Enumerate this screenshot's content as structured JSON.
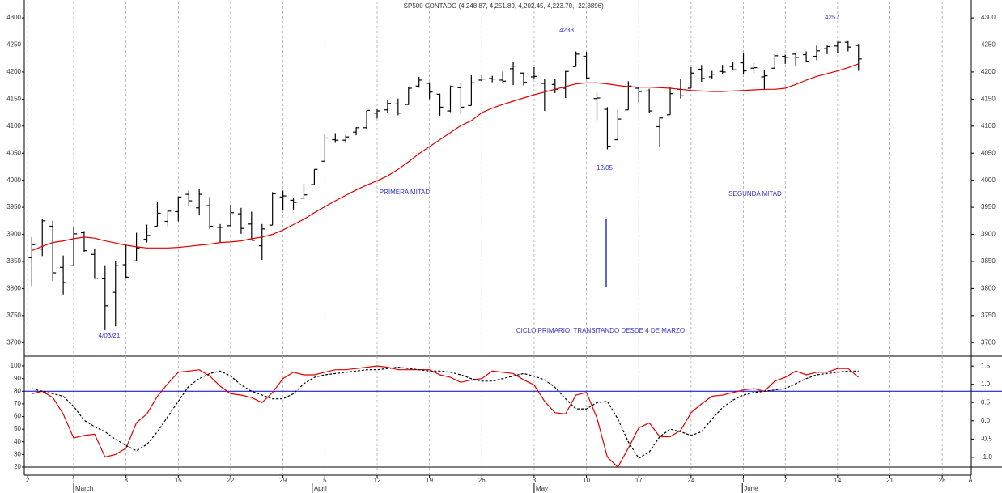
{
  "chart_data": [
    {
      "type": "ohlc",
      "title": "I SP500 CONTADO (4,248.87, 4,251.89, 4,202.45, 4,223.70, -22.8896)",
      "annotations": [
        "4238",
        "4257",
        "12/05",
        "4/03/21",
        "PRIMERA MITAD",
        "SEGUNDA MITAD",
        "CICLO PRIMARIO, TRANSITANDO DESDE 4 DE MARZO"
      ],
      "x": [
        0,
        1,
        2,
        3,
        4,
        5,
        6,
        7,
        8,
        9,
        10,
        11,
        12,
        13,
        14,
        15,
        16,
        17,
        18,
        19,
        20,
        21,
        22,
        23,
        24,
        25,
        26,
        27,
        28,
        29,
        30,
        31,
        32,
        33,
        34,
        35,
        36,
        37,
        38,
        39,
        40,
        41,
        42,
        43,
        44,
        45,
        46,
        47,
        48,
        49,
        50,
        51,
        52,
        53,
        54,
        55,
        56,
        57,
        58,
        59,
        60,
        61,
        62,
        63,
        64,
        65,
        66,
        67,
        68,
        69,
        70,
        71,
        72,
        73,
        74,
        75,
        76,
        77,
        78,
        79
      ],
      "open": [
        3857,
        3873,
        3915,
        3839,
        3842,
        3903,
        3863,
        3818,
        3793,
        3844,
        3851,
        3891,
        3915,
        3924,
        3942,
        3974,
        3949,
        3953,
        3913,
        3916,
        3938,
        3919,
        3879,
        3917,
        3969,
        3963,
        3967,
        3992,
        4035,
        4075,
        4074,
        4089,
        4097,
        4124,
        4130,
        4141,
        4140,
        4174,
        4179,
        4159,
        4128,
        4171,
        4138,
        4185,
        4188,
        4185,
        4206,
        4198,
        4191,
        4179,
        4177,
        4170,
        4210,
        4229,
        4151,
        4131,
        4075,
        4130,
        4170,
        4165,
        4099,
        4121,
        4168,
        4170,
        4205,
        4191,
        4201,
        4210,
        4217,
        4207,
        4191,
        4207,
        4229,
        4233,
        4232,
        4229,
        4243,
        4248,
        4255,
        4249
      ],
      "high": [
        3895,
        3928,
        3925,
        3861,
        3914,
        3906,
        3874,
        3843,
        3851,
        3881,
        3903,
        3918,
        3960,
        3944,
        3970,
        3981,
        3983,
        3969,
        3919,
        3955,
        3949,
        3942,
        3919,
        3978,
        3981,
        3968,
        3994,
        4020,
        4083,
        4087,
        4083,
        4098,
        4129,
        4131,
        4148,
        4151,
        4173,
        4191,
        4181,
        4160,
        4175,
        4179,
        4194,
        4194,
        4193,
        4201,
        4218,
        4199,
        4209,
        4187,
        4187,
        4202,
        4238,
        4237,
        4162,
        4135,
        4131,
        4183,
        4172,
        4169,
        4116,
        4172,
        4188,
        4209,
        4213,
        4202,
        4213,
        4218,
        4235,
        4217,
        4204,
        4233,
        4232,
        4236,
        4238,
        4249,
        4249,
        4256,
        4257,
        4252
      ],
      "low": [
        3805,
        3860,
        3814,
        3789,
        3842,
        3868,
        3818,
        3723,
        3730,
        3819,
        3851,
        3885,
        3915,
        3915,
        3924,
        3953,
        3935,
        3910,
        3885,
        3915,
        3901,
        3889,
        3853,
        3917,
        3944,
        3944,
        3966,
        3992,
        4035,
        4069,
        4069,
        4083,
        4095,
        4114,
        4125,
        4120,
        4139,
        4171,
        4150,
        4119,
        4126,
        4123,
        4138,
        4183,
        4181,
        4181,
        4176,
        4175,
        4188,
        4128,
        4161,
        4152,
        4210,
        4188,
        4111,
        4057,
        4074,
        4130,
        4143,
        4125,
        4062,
        4121,
        4151,
        4170,
        4182,
        4188,
        4197,
        4203,
        4196,
        4198,
        4167,
        4206,
        4215,
        4210,
        4219,
        4222,
        4233,
        4235,
        4238,
        4202
      ],
      "close": [
        3881,
        3925,
        3829,
        3811,
        3901,
        3870,
        3819,
        3768,
        3842,
        3821,
        3875,
        3898,
        3939,
        3943,
        3969,
        3962,
        3974,
        3915,
        3913,
        3940,
        3911,
        3889,
        3910,
        3975,
        3971,
        3959,
        3973,
        4020,
        4078,
        4074,
        4080,
        4097,
        4129,
        4128,
        4142,
        4124,
        4170,
        4185,
        4163,
        4135,
        4173,
        4135,
        4180,
        4187,
        4187,
        4183,
        4211,
        4181,
        4192,
        4165,
        4168,
        4201,
        4233,
        4189,
        4152,
        4063,
        4113,
        4174,
        4164,
        4128,
        4115,
        4160,
        4156,
        4198,
        4188,
        4196,
        4200,
        4204,
        4202,
        4208,
        4193,
        4230,
        4227,
        4227,
        4220,
        4239,
        4247,
        4255,
        4246,
        4224
      ],
      "bar_color": "#000000",
      "series": [
        {
          "color": "#e00000",
          "values": [
            3870,
            3878,
            3885,
            3888,
            3892,
            3895,
            3893,
            3888,
            3884,
            3880,
            3877,
            3875,
            3875,
            3875,
            3876,
            3878,
            3880,
            3882,
            3885,
            3886,
            3888,
            3892,
            3895,
            3900,
            3908,
            3918,
            3928,
            3940,
            3951,
            3962,
            3972,
            3982,
            3991,
            3999,
            4008,
            4020,
            4034,
            4049,
            4062,
            4075,
            4088,
            4101,
            4110,
            4125,
            4133,
            4140,
            4146,
            4152,
            4158,
            4163,
            4168,
            4173,
            4178,
            4180,
            4180,
            4178,
            4175,
            4173,
            4172,
            4172,
            4171,
            4170,
            4168,
            4166,
            4165,
            4164,
            4164,
            4165,
            4166,
            4167,
            4168,
            4168,
            4170,
            4177,
            4185,
            4192,
            4197,
            4202,
            4208,
            4215
          ]
        }
      ],
      "xlim": [
        -0.72,
        89.77
      ],
      "ylim": [
        3675,
        4330
      ],
      "yticks": [
        3700,
        3750,
        3800,
        3850,
        3900,
        3950,
        4000,
        4050,
        4100,
        4150,
        4200,
        4250,
        4300
      ]
    },
    {
      "type": "line",
      "x": [
        0,
        1,
        2,
        3,
        4,
        5,
        6,
        7,
        8,
        9,
        10,
        11,
        12,
        13,
        14,
        15,
        16,
        17,
        18,
        19,
        20,
        21,
        22,
        23,
        24,
        25,
        26,
        27,
        28,
        29,
        30,
        31,
        32,
        33,
        34,
        35,
        36,
        37,
        38,
        39,
        40,
        41,
        42,
        43,
        44,
        45,
        46,
        47,
        48,
        49,
        50,
        51,
        52,
        53,
        54,
        55,
        56,
        57,
        58,
        59,
        60,
        61,
        62,
        63,
        64,
        65,
        66,
        67,
        68,
        69,
        70,
        71,
        72,
        73,
        74,
        75,
        76,
        77,
        78,
        79
      ],
      "series": [
        {
          "color": "#e00000",
          "dashed": false,
          "values": [
            78,
            80,
            75,
            62,
            43,
            45,
            46,
            28,
            30,
            35,
            55,
            62,
            76,
            86,
            95,
            96,
            97,
            92,
            84,
            78,
            77,
            75,
            71,
            79,
            90,
            95,
            93,
            93,
            95,
            97,
            97,
            98,
            99,
            100,
            99,
            97,
            97,
            97,
            97,
            93,
            91,
            87,
            89,
            90,
            96,
            95,
            94,
            89,
            85,
            72,
            63,
            62,
            77,
            79,
            59,
            28,
            20,
            35,
            51,
            55,
            44,
            44,
            49,
            63,
            70,
            76,
            77,
            79,
            81,
            82,
            80,
            88,
            91,
            96,
            93,
            95,
            95,
            98,
            98,
            91
          ]
        },
        {
          "color": "#000000",
          "dashed": true,
          "values": [
            82,
            80,
            78,
            76,
            68,
            57,
            52,
            48,
            42,
            37,
            33,
            38,
            48,
            60,
            72,
            84,
            90,
            94,
            96,
            92,
            85,
            80,
            77,
            74,
            74,
            78,
            86,
            91,
            93,
            94,
            95,
            96,
            97,
            97,
            98,
            99,
            98,
            97,
            96,
            96,
            95,
            93,
            90,
            88,
            88,
            90,
            92,
            94,
            92,
            89,
            83,
            74,
            66,
            66,
            71,
            72,
            58,
            40,
            27,
            32,
            44,
            50,
            48,
            45,
            48,
            58,
            67,
            73,
            77,
            79,
            80,
            81,
            82,
            86,
            90,
            93,
            94,
            95,
            96,
            96
          ]
        }
      ],
      "reference_lines": [
        {
          "value": 80,
          "color": "#0000cc"
        },
        {
          "value": 20,
          "color": "#000000"
        }
      ],
      "xlim": [
        -0.72,
        89.77
      ],
      "ylim": [
        13.6,
        107.7
      ],
      "yticks": [
        20,
        30,
        40,
        50,
        60,
        70,
        80,
        90,
        100
      ],
      "y2lim": [
        -1.49,
        1.77
      ],
      "y2ticks": [
        {
          "value": 1.5,
          "label": "1.5"
        },
        {
          "value": 1,
          "label": "1.0"
        },
        {
          "value": 0.5,
          "label": "0.5"
        },
        {
          "value": 0,
          "label": "0.0"
        },
        {
          "value": -0.5,
          "label": "-0.5"
        },
        {
          "value": -1,
          "label": "-1.0"
        }
      ],
      "xticks": [
        {
          "value": -0.4,
          "label": "2"
        },
        {
          "value": 4,
          "label": "1"
        },
        {
          "value": 9,
          "label": "8"
        },
        {
          "value": 14,
          "label": "15"
        },
        {
          "value": 19,
          "label": "22"
        },
        {
          "value": 24,
          "label": "29"
        },
        {
          "value": 28,
          "label": "5"
        },
        {
          "value": 33,
          "label": "12"
        },
        {
          "value": 38,
          "label": "19"
        },
        {
          "value": 43,
          "label": "26"
        },
        {
          "value": 48,
          "label": "3"
        },
        {
          "value": 53,
          "label": "10"
        },
        {
          "value": 58,
          "label": "17"
        },
        {
          "value": 63,
          "label": "24"
        },
        {
          "value": 68,
          "label": "1"
        },
        {
          "value": 72,
          "label": "7"
        },
        {
          "value": 77,
          "label": "14"
        },
        {
          "value": 82,
          "label": "21"
        },
        {
          "value": 87,
          "label": "28"
        },
        {
          "value": 89.7,
          "label": "A"
        }
      ],
      "month_ticks": [
        {
          "value": 4,
          "label": "March"
        },
        {
          "value": 26.8,
          "label": "April"
        },
        {
          "value": 48,
          "label": "May"
        },
        {
          "value": 67.9,
          "label": "June"
        }
      ]
    }
  ]
}
